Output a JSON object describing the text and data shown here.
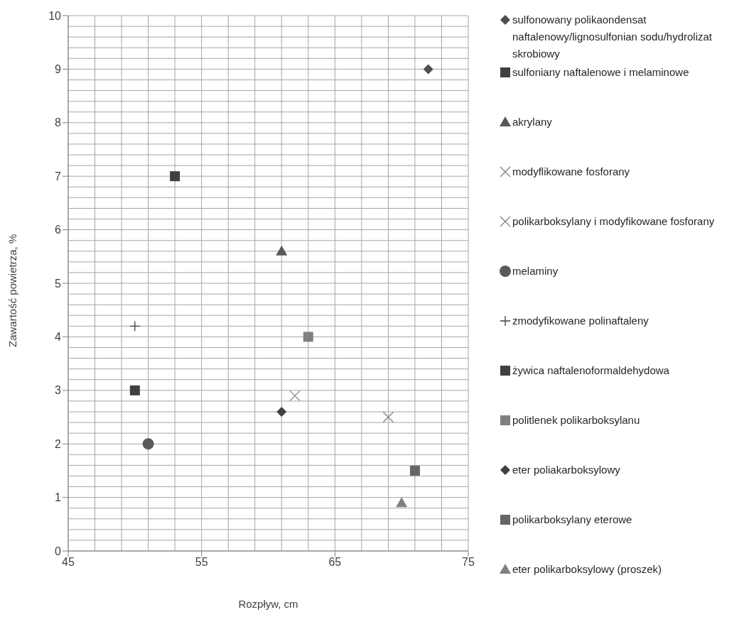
{
  "chart_data": {
    "type": "scatter",
    "xlabel": "Rozpływ, cm",
    "ylabel": "Zawartość powietrza, %",
    "xlim": [
      45,
      75
    ],
    "xticks": [
      45,
      55,
      65,
      75
    ],
    "ylim": [
      0,
      10
    ],
    "yticks": [
      0,
      1,
      2,
      3,
      4,
      5,
      6,
      7,
      8,
      9,
      10
    ],
    "grid": true,
    "legend": "right",
    "series": [
      {
        "name": "sulfonowany polikaondensat naftalenowy/lignosulfonian sodu/hydrolizat skrobiowy",
        "color": "#4d4d4d",
        "marker": "diamond",
        "x": [
          72
        ],
        "values": [
          9
        ]
      },
      {
        "name": "sulfoniany naftalenowe i melaminowe",
        "color": "#404040",
        "marker": "square",
        "x": [
          50
        ],
        "values": [
          3
        ]
      },
      {
        "name": "akrylany",
        "color": "#595959",
        "marker": "triangle",
        "x": [
          61
        ],
        "values": [
          5.6
        ]
      },
      {
        "name": "modyflikowane fosforany",
        "color": "#808080",
        "x": [
          62
        ],
        "values": [
          2.9
        ]
      },
      {
        "name": "polikarboksylany i modyfikowane fosforany",
        "color": "#808080",
        "x": [
          69
        ],
        "values": [
          2.5
        ]
      },
      {
        "name": "melaminy",
        "color": "#595959",
        "marker": "circle",
        "x": [
          51
        ],
        "values": [
          2
        ]
      },
      {
        "name": "zmodyfikowane polinaftaleny",
        "color": "#404040",
        "marker": "cross",
        "x": [
          50
        ],
        "values": [
          4.2
        ]
      },
      {
        "name": "żywica naftalenoformaldehydowa",
        "color": "#404040",
        "marker": "square",
        "x": [
          53
        ],
        "values": [
          7
        ]
      },
      {
        "name": "politlenek polikarboksylanu",
        "color": "#808080",
        "marker": "square",
        "x": [
          63
        ],
        "values": [
          4
        ]
      },
      {
        "name": "eter poliakarboksylowy",
        "color": "#404040",
        "marker": "diamond",
        "x": [
          61
        ],
        "values": [
          2.6
        ]
      },
      {
        "name": "polikarboksylany eterowe",
        "color": "#666666",
        "marker": "square",
        "x": [
          71
        ],
        "values": [
          1.5
        ]
      },
      {
        "name": "eter polikarboksylowy (proszek)",
        "color": "#808080",
        "marker": "triangle",
        "x": [
          70
        ],
        "values": [
          0.9
        ]
      }
    ]
  }
}
